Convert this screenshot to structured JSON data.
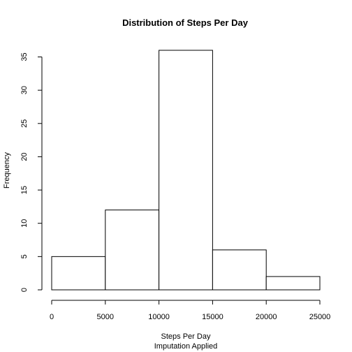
{
  "chart_data": {
    "type": "bar",
    "title": "Distribution of Steps Per Day",
    "xlabel": "Steps Per Day",
    "sub": "Imputation Applied",
    "ylabel": "Frequency",
    "bins": [
      {
        "from": 0,
        "to": 5000,
        "count": 5
      },
      {
        "from": 5000,
        "to": 10000,
        "count": 12
      },
      {
        "from": 10000,
        "to": 15000,
        "count": 36
      },
      {
        "from": 15000,
        "to": 20000,
        "count": 6
      },
      {
        "from": 20000,
        "to": 25000,
        "count": 2
      }
    ],
    "xlim": [
      0,
      25000
    ],
    "ylim": [
      0,
      36
    ],
    "xticks": [
      0,
      5000,
      10000,
      15000,
      20000,
      25000
    ],
    "yticks": [
      0,
      5,
      10,
      15,
      20,
      25,
      30,
      35
    ],
    "grid": false,
    "colors": {
      "fill": "#ffffff",
      "stroke": "#000000"
    }
  }
}
